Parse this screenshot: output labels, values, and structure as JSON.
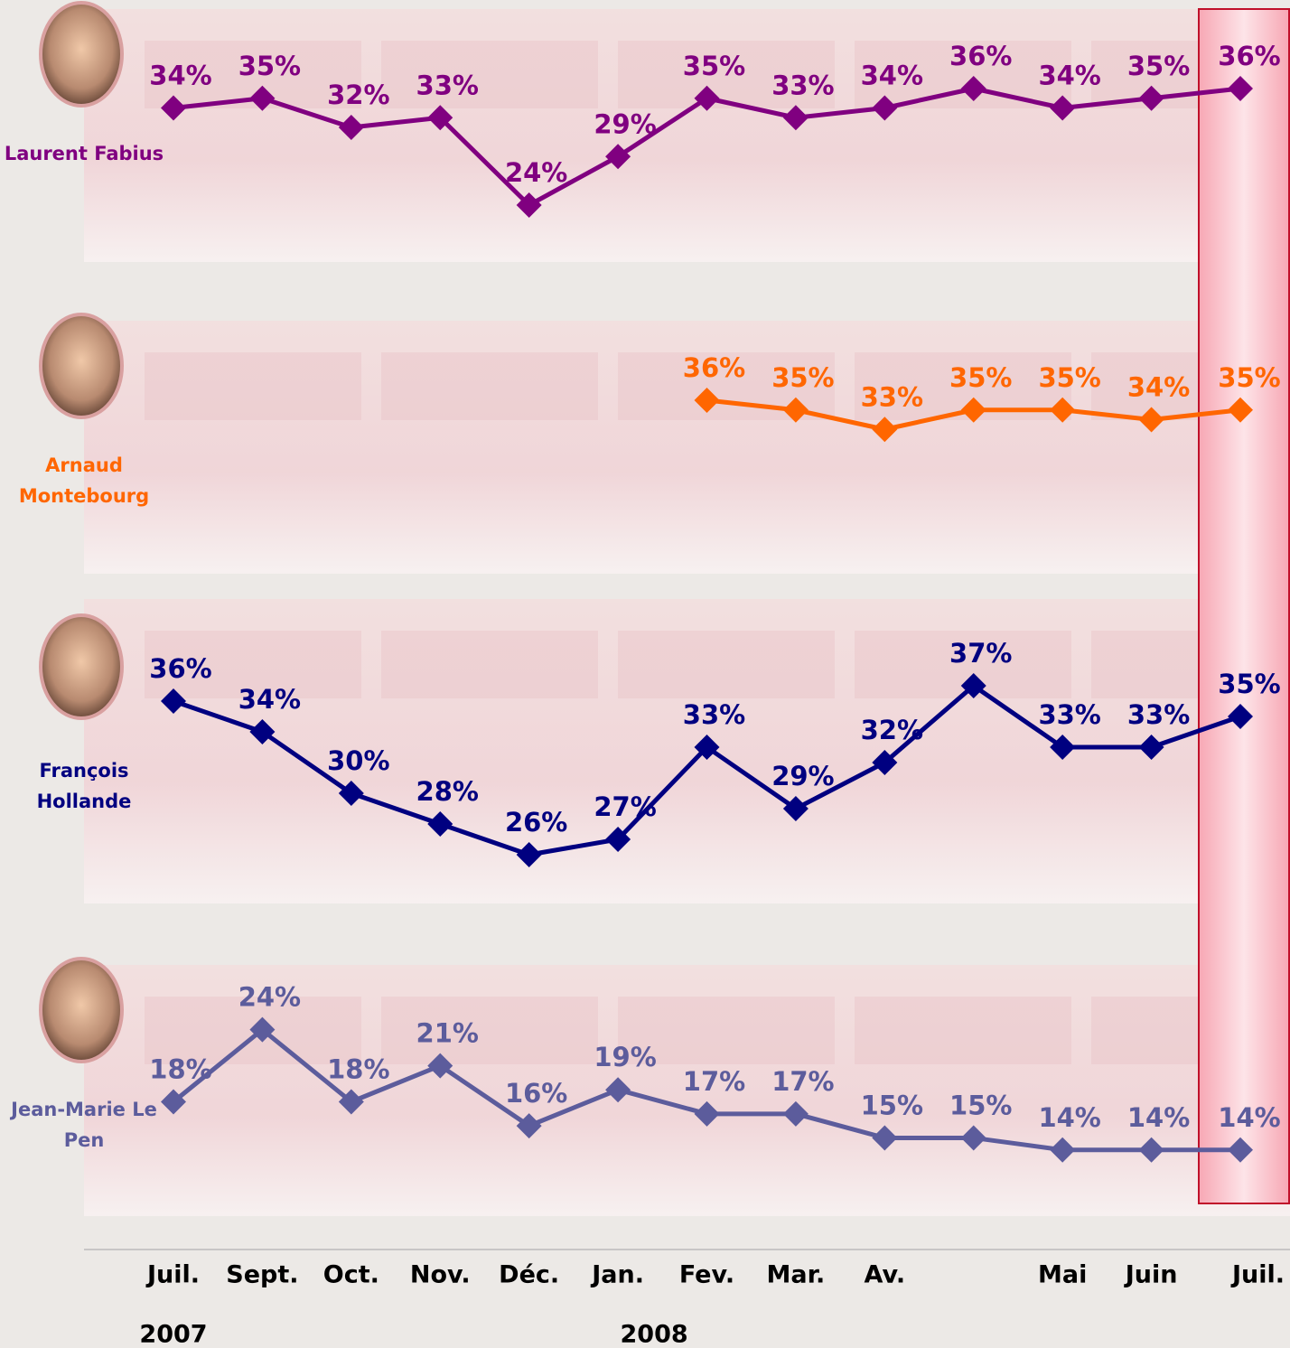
{
  "chart_data": {
    "type": "line",
    "categories": [
      "Juil.",
      "Sept.",
      "Oct.",
      "Nov.",
      "Déc.",
      "Jan.",
      "Fev.",
      "Mar.",
      "Av.",
      null,
      "Mai",
      "Juin",
      "Juil."
    ],
    "years": [
      "2007",
      null,
      null,
      null,
      null,
      "2008",
      null,
      null,
      null,
      null,
      null,
      null,
      null
    ],
    "series": [
      {
        "name": "Laurent Fabius",
        "color": "#800080",
        "ylim": [
          20,
          40
        ],
        "values": [
          34,
          35,
          32,
          33,
          24,
          29,
          35,
          33,
          34,
          36,
          34,
          35,
          36
        ],
        "value_labels": [
          "34%",
          "35%",
          "32%",
          "33%",
          "24%",
          "29%",
          "35%",
          "33%",
          "34%",
          "36%",
          "34%",
          "35%",
          "36%"
        ]
      },
      {
        "name": "Arnaud Montebourg",
        "color": "#ff6600",
        "ylim": [
          20,
          40
        ],
        "values": [
          null,
          null,
          null,
          null,
          null,
          null,
          36,
          35,
          33,
          35,
          35,
          34,
          35
        ],
        "value_labels": [
          null,
          null,
          null,
          null,
          null,
          null,
          "36%",
          "35%",
          "33%",
          "35%",
          "35%",
          "34%",
          "35%"
        ]
      },
      {
        "name": "François Hollande",
        "color": "#000080",
        "ylim": [
          24,
          40
        ],
        "values": [
          36,
          34,
          30,
          28,
          26,
          27,
          33,
          29,
          32,
          37,
          33,
          33,
          35
        ],
        "value_labels": [
          "36%",
          "34%",
          "30%",
          "28%",
          "26%",
          "27%",
          "33%",
          "29%",
          "32%",
          "37%",
          "33%",
          "33%",
          "35%"
        ]
      },
      {
        "name": "Jean-Marie Le Pen",
        "color": "#5c5c9c",
        "ylim": [
          10,
          26
        ],
        "values": [
          18,
          24,
          18,
          21,
          16,
          19,
          17,
          17,
          15,
          15,
          14,
          14,
          14
        ],
        "value_labels": [
          "18%",
          "24%",
          "18%",
          "21%",
          "16%",
          "19%",
          "17%",
          "17%",
          "15%",
          "15%",
          "14%",
          "14%",
          "14%"
        ]
      }
    ]
  }
}
